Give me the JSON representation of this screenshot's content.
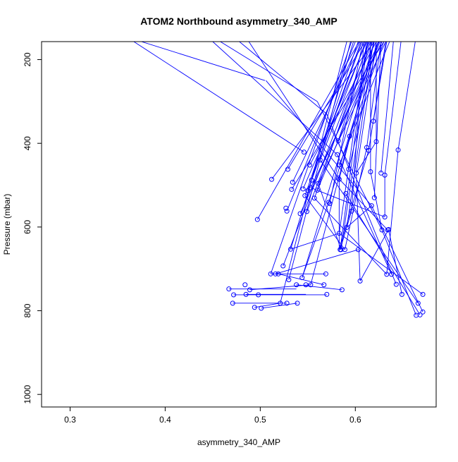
{
  "chart_data": {
    "type": "scatter",
    "title": "ATOM2 Northbound asymmetry_340_AMP",
    "xlabel": "asymmetry_340_AMP",
    "ylabel": "Pressure (mbar)",
    "xlim": [
      0.27,
      0.685
    ],
    "ylim": [
      1030,
      157
    ],
    "y_reversed": true,
    "x_ticks": [
      0.3,
      0.4,
      0.5,
      0.6
    ],
    "x_tick_labels": [
      "0.3",
      "0.4",
      "0.5",
      "0.6"
    ],
    "y_ticks": [
      200,
      400,
      600,
      800,
      1000
    ],
    "y_tick_labels": [
      "200",
      "400",
      "600",
      "800",
      "1000"
    ],
    "grid": false,
    "legend": "none",
    "series_color": "#0000ff",
    "point_style": "open-circle",
    "series": [
      {
        "points": [
          {
            "x": 0.467,
            "y": 748
          },
          {
            "x": 0.471,
            "y": 782
          },
          {
            "x": 0.472,
            "y": 762
          },
          {
            "x": 0.484,
            "y": 738
          },
          {
            "x": 0.485,
            "y": 761
          },
          {
            "x": 0.489,
            "y": 750
          },
          {
            "x": 0.494,
            "y": 792
          },
          {
            "x": 0.497,
            "y": 582
          },
          {
            "x": 0.498,
            "y": 762
          },
          {
            "x": 0.501,
            "y": 794
          },
          {
            "x": 0.511,
            "y": 712
          },
          {
            "x": 0.512,
            "y": 486
          },
          {
            "x": 0.516,
            "y": 712
          },
          {
            "x": 0.519,
            "y": 712
          },
          {
            "x": 0.521,
            "y": 782
          },
          {
            "x": 0.524,
            "y": 693
          },
          {
            "x": 0.527,
            "y": 555
          },
          {
            "x": 0.528,
            "y": 782
          },
          {
            "x": 0.528,
            "y": 562
          },
          {
            "x": 0.529,
            "y": 462
          },
          {
            "x": 0.53,
            "y": 726
          },
          {
            "x": 0.532,
            "y": 653
          },
          {
            "x": 0.533,
            "y": 510
          },
          {
            "x": 0.534,
            "y": 493
          },
          {
            "x": 0.538,
            "y": 738
          },
          {
            "x": 0.539,
            "y": 782
          },
          {
            "x": 0.542,
            "y": 568
          },
          {
            "x": 0.544,
            "y": 721
          },
          {
            "x": 0.545,
            "y": 509
          },
          {
            "x": 0.546,
            "y": 421
          },
          {
            "x": 0.547,
            "y": 525
          },
          {
            "x": 0.548,
            "y": 738
          },
          {
            "x": 0.549,
            "y": 563
          },
          {
            "x": 0.55,
            "y": 513
          },
          {
            "x": 0.552,
            "y": 452
          },
          {
            "x": 0.553,
            "y": 738
          },
          {
            "x": 0.553,
            "y": 506
          },
          {
            "x": 0.554,
            "y": 488
          },
          {
            "x": 0.557,
            "y": 531
          },
          {
            "x": 0.56,
            "y": 512
          },
          {
            "x": 0.561,
            "y": 496
          },
          {
            "x": 0.563,
            "y": 440
          },
          {
            "x": 0.567,
            "y": 738
          },
          {
            "x": 0.569,
            "y": 712
          },
          {
            "x": 0.57,
            "y": 761
          },
          {
            "x": 0.572,
            "y": 541
          },
          {
            "x": 0.573,
            "y": 544
          },
          {
            "x": 0.581,
            "y": 427
          },
          {
            "x": 0.582,
            "y": 483
          },
          {
            "x": 0.582,
            "y": 394
          },
          {
            "x": 0.583,
            "y": 615
          },
          {
            "x": 0.583,
            "y": 486
          },
          {
            "x": 0.583,
            "y": 452
          },
          {
            "x": 0.584,
            "y": 654
          },
          {
            "x": 0.585,
            "y": 654
          },
          {
            "x": 0.586,
            "y": 750
          },
          {
            "x": 0.589,
            "y": 654
          },
          {
            "x": 0.59,
            "y": 520
          },
          {
            "x": 0.591,
            "y": 601
          },
          {
            "x": 0.593,
            "y": 462
          },
          {
            "x": 0.594,
            "y": 383
          },
          {
            "x": 0.596,
            "y": 562
          },
          {
            "x": 0.601,
            "y": 471
          },
          {
            "x": 0.603,
            "y": 654
          },
          {
            "x": 0.605,
            "y": 729
          },
          {
            "x": 0.612,
            "y": 410
          },
          {
            "x": 0.614,
            "y": 417
          },
          {
            "x": 0.616,
            "y": 468
          },
          {
            "x": 0.617,
            "y": 549
          },
          {
            "x": 0.619,
            "y": 347
          },
          {
            "x": 0.62,
            "y": 530
          },
          {
            "x": 0.622,
            "y": 396
          },
          {
            "x": 0.627,
            "y": 471
          },
          {
            "x": 0.628,
            "y": 607
          },
          {
            "x": 0.631,
            "y": 576
          },
          {
            "x": 0.631,
            "y": 476
          },
          {
            "x": 0.633,
            "y": 713
          },
          {
            "x": 0.634,
            "y": 607
          },
          {
            "x": 0.635,
            "y": 606
          },
          {
            "x": 0.638,
            "y": 713
          },
          {
            "x": 0.643,
            "y": 737
          },
          {
            "x": 0.645,
            "y": 416
          },
          {
            "x": 0.649,
            "y": 761
          },
          {
            "x": 0.664,
            "y": 811
          },
          {
            "x": 0.666,
            "y": 782
          },
          {
            "x": 0.668,
            "y": 810
          },
          {
            "x": 0.671,
            "y": 803
          },
          {
            "x": 0.671,
            "y": 761
          }
        ],
        "segments": [
          [
            0.367,
            157,
            0.546,
            421
          ],
          [
            0.45,
            157,
            0.581,
            427
          ],
          [
            0.488,
            157,
            0.582,
            483
          ],
          [
            0.375,
            157,
            0.505,
            250
          ],
          [
            0.506,
            250,
            0.617,
            549
          ],
          [
            0.617,
            549,
            0.671,
            803
          ],
          [
            0.458,
            157,
            0.56,
            300
          ],
          [
            0.56,
            300,
            0.628,
            607
          ],
          [
            0.628,
            607,
            0.664,
            811
          ],
          [
            0.478,
            157,
            0.57,
            330
          ],
          [
            0.57,
            330,
            0.643,
            737
          ],
          [
            0.59,
            520,
            0.668,
            810
          ],
          [
            0.563,
            440,
            0.666,
            782
          ],
          [
            0.605,
            729,
            0.635,
            606
          ],
          [
            0.635,
            606,
            0.649,
            761
          ],
          [
            0.583,
            615,
            0.671,
            761
          ],
          [
            0.604,
            157,
            0.497,
            582
          ],
          [
            0.62,
            157,
            0.512,
            486
          ],
          [
            0.61,
            157,
            0.529,
            462
          ],
          [
            0.6,
            157,
            0.528,
            562
          ],
          [
            0.615,
            157,
            0.524,
            693
          ],
          [
            0.595,
            157,
            0.53,
            726
          ],
          [
            0.605,
            157,
            0.534,
            493
          ],
          [
            0.63,
            157,
            0.533,
            510
          ],
          [
            0.625,
            157,
            0.542,
            568
          ],
          [
            0.612,
            157,
            0.545,
            509
          ],
          [
            0.618,
            157,
            0.549,
            563
          ],
          [
            0.622,
            157,
            0.552,
            452
          ],
          [
            0.628,
            157,
            0.553,
            506
          ],
          [
            0.606,
            157,
            0.554,
            488
          ],
          [
            0.614,
            157,
            0.557,
            531
          ],
          [
            0.626,
            157,
            0.56,
            512
          ],
          [
            0.632,
            157,
            0.561,
            496
          ],
          [
            0.611,
            157,
            0.563,
            440
          ],
          [
            0.608,
            157,
            0.573,
            544
          ],
          [
            0.616,
            157,
            0.582,
            394
          ],
          [
            0.62,
            157,
            0.583,
            486
          ],
          [
            0.636,
            157,
            0.583,
            452
          ],
          [
            0.613,
            157,
            0.584,
            654
          ],
          [
            0.619,
            157,
            0.591,
            601
          ],
          [
            0.624,
            157,
            0.593,
            462
          ],
          [
            0.63,
            157,
            0.594,
            383
          ],
          [
            0.609,
            157,
            0.596,
            562
          ],
          [
            0.622,
            157,
            0.601,
            471
          ],
          [
            0.627,
            157,
            0.612,
            410
          ],
          [
            0.632,
            157,
            0.614,
            417
          ],
          [
            0.616,
            157,
            0.616,
            468
          ],
          [
            0.633,
            157,
            0.619,
            347
          ],
          [
            0.622,
            157,
            0.622,
            396
          ],
          [
            0.648,
            157,
            0.631,
            476
          ],
          [
            0.663,
            157,
            0.645,
            416
          ],
          [
            0.64,
            157,
            0.627,
            471
          ],
          [
            0.603,
            157,
            0.547,
            525
          ],
          [
            0.607,
            157,
            0.55,
            513
          ],
          [
            0.617,
            157,
            0.585,
            654
          ],
          [
            0.591,
            157,
            0.521,
            782
          ],
          [
            0.598,
            157,
            0.532,
            653
          ],
          [
            0.62,
            157,
            0.544,
            721
          ],
          [
            0.624,
            157,
            0.572,
            541
          ],
          [
            0.612,
            157,
            0.583,
            615
          ],
          [
            0.627,
            157,
            0.62,
            530
          ],
          [
            0.596,
            157,
            0.511,
            712
          ],
          [
            0.467,
            748,
            0.538,
            748
          ],
          [
            0.471,
            782,
            0.528,
            782
          ],
          [
            0.472,
            762,
            0.57,
            762
          ],
          [
            0.485,
            761,
            0.548,
            761
          ],
          [
            0.489,
            750,
            0.553,
            738
          ],
          [
            0.494,
            792,
            0.521,
            782
          ],
          [
            0.501,
            794,
            0.539,
            782
          ],
          [
            0.511,
            712,
            0.569,
            712
          ],
          [
            0.516,
            712,
            0.603,
            654
          ],
          [
            0.519,
            712,
            0.567,
            738
          ],
          [
            0.532,
            653,
            0.583,
            615
          ],
          [
            0.538,
            738,
            0.586,
            750
          ],
          [
            0.544,
            721,
            0.572,
            541
          ],
          [
            0.547,
            525,
            0.589,
            654
          ],
          [
            0.553,
            738,
            0.594,
            383
          ],
          [
            0.553,
            506,
            0.631,
            576
          ],
          [
            0.557,
            531,
            0.633,
            713
          ],
          [
            0.561,
            496,
            0.585,
            654
          ],
          [
            0.581,
            427,
            0.638,
            713
          ],
          [
            0.582,
            483,
            0.634,
            607
          ],
          [
            0.583,
            486,
            0.583,
            654
          ],
          [
            0.584,
            654,
            0.596,
            562
          ],
          [
            0.591,
            601,
            0.617,
            549
          ],
          [
            0.601,
            471,
            0.605,
            729
          ],
          [
            0.612,
            410,
            0.589,
            654
          ],
          [
            0.614,
            417,
            0.583,
            654
          ],
          [
            0.616,
            468,
            0.628,
            607
          ],
          [
            0.622,
            396,
            0.601,
            471
          ],
          [
            0.631,
            476,
            0.631,
            576
          ],
          [
            0.645,
            416,
            0.633,
            713
          ]
        ]
      }
    ]
  }
}
